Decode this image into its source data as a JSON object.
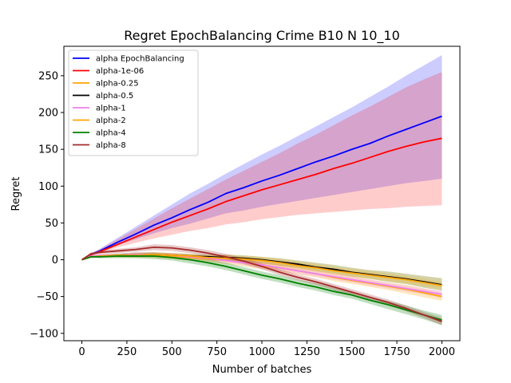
{
  "chart_data": {
    "type": "line",
    "title": "Regret EpochBalancing Crime B10 N 10_10",
    "xlabel": "Number of batches",
    "ylabel": "Regret",
    "xlim": [
      -100,
      2100
    ],
    "ylim": [
      -110,
      290
    ],
    "xticks": [
      0,
      250,
      500,
      750,
      1000,
      1250,
      1500,
      1750,
      2000
    ],
    "yticks": [
      -100,
      -50,
      0,
      50,
      100,
      150,
      200,
      250
    ],
    "legend_position": "upper-left",
    "series": [
      {
        "name": "alpha EpochBalancing",
        "color": "#0000ff",
        "band_color": "#0000ff",
        "band_opacity": 0.2,
        "x": [
          0,
          50,
          100,
          200,
          300,
          400,
          500,
          600,
          700,
          800,
          900,
          1000,
          1100,
          1200,
          1300,
          1400,
          1500,
          1600,
          1700,
          1800,
          1900,
          2000
        ],
        "y": [
          0,
          7,
          12,
          24,
          35,
          47,
          57,
          68,
          78,
          90,
          98,
          107,
          115,
          124,
          133,
          141,
          150,
          158,
          168,
          177,
          186,
          195
        ],
        "lower": [
          0,
          5,
          10,
          20,
          28,
          36,
          43,
          49,
          56,
          63,
          67,
          72,
          76,
          80,
          84,
          88,
          92,
          96,
          100,
          104,
          107,
          110
        ],
        "upper": [
          0,
          9,
          15,
          30,
          45,
          60,
          75,
          90,
          103,
          117,
          130,
          143,
          155,
          168,
          181,
          194,
          207,
          221,
          235,
          250,
          264,
          278
        ]
      },
      {
        "name": "alpha-1e-06",
        "color": "#ff0000",
        "band_color": "#ff0000",
        "band_opacity": 0.2,
        "x": [
          0,
          50,
          100,
          200,
          300,
          400,
          500,
          600,
          700,
          800,
          900,
          1000,
          1100,
          1200,
          1300,
          1400,
          1500,
          1600,
          1700,
          1800,
          1900,
          2000
        ],
        "y": [
          0,
          7,
          11,
          21,
          31,
          41,
          51,
          60,
          69,
          79,
          87,
          95,
          102,
          109,
          116,
          124,
          131,
          139,
          147,
          154,
          160,
          165
        ],
        "lower": [
          0,
          6,
          9,
          17,
          23,
          29,
          34,
          39,
          43,
          48,
          51,
          55,
          58,
          61,
          63,
          65,
          67,
          69,
          70,
          72,
          73,
          74
        ],
        "upper": [
          0,
          8,
          14,
          28,
          42,
          56,
          70,
          83,
          96,
          109,
          121,
          133,
          145,
          158,
          170,
          183,
          196,
          208,
          221,
          234,
          245,
          255
        ]
      },
      {
        "name": "alpha-0.25",
        "color": "#ffa500",
        "band_color": "#ffa500",
        "band_opacity": 0.25,
        "x": [
          0,
          50,
          100,
          200,
          300,
          400,
          500,
          600,
          700,
          800,
          900,
          1000,
          1100,
          1200,
          1300,
          1400,
          1500,
          1600,
          1700,
          1800,
          1900,
          2000
        ],
        "y": [
          0,
          4,
          5,
          5,
          6,
          6,
          5,
          3,
          1,
          -1,
          -4,
          -8,
          -11,
          -15,
          -19,
          -24,
          -28,
          -32,
          -36,
          -40,
          -45,
          -50
        ],
        "lower": [
          0,
          3,
          3,
          3,
          3,
          2,
          1,
          -1,
          -3,
          -6,
          -9,
          -13,
          -16,
          -20,
          -24,
          -29,
          -33,
          -37,
          -41,
          -46,
          -51,
          -56
        ],
        "upper": [
          0,
          5,
          7,
          7,
          9,
          10,
          9,
          7,
          5,
          4,
          1,
          -3,
          -6,
          -10,
          -14,
          -19,
          -23,
          -27,
          -31,
          -34,
          -39,
          -44
        ]
      },
      {
        "name": "alpha-0.5",
        "color": "#000000",
        "band_color": "#808000",
        "band_opacity": 0.35,
        "x": [
          0,
          50,
          100,
          200,
          300,
          400,
          500,
          600,
          700,
          800,
          900,
          1000,
          1100,
          1200,
          1300,
          1400,
          1500,
          1600,
          1700,
          1800,
          1900,
          2000
        ],
        "y": [
          0,
          4,
          5,
          6,
          7,
          7,
          6,
          5,
          4,
          3,
          2,
          0,
          -3,
          -6,
          -10,
          -13,
          -17,
          -20,
          -23,
          -26,
          -30,
          -34
        ],
        "lower": [
          0,
          3,
          3,
          4,
          4,
          4,
          3,
          2,
          0,
          -2,
          -3,
          -5,
          -8,
          -11,
          -15,
          -19,
          -23,
          -26,
          -30,
          -33,
          -38,
          -42
        ],
        "upper": [
          0,
          5,
          7,
          8,
          10,
          10,
          9,
          8,
          7,
          7,
          6,
          4,
          2,
          -1,
          -4,
          -7,
          -11,
          -14,
          -16,
          -19,
          -22,
          -25
        ]
      },
      {
        "name": "alpha-1",
        "color": "#ee82ee",
        "band_color": "#ee82ee",
        "band_opacity": 0.25,
        "x": [
          0,
          50,
          100,
          200,
          300,
          400,
          500,
          600,
          700,
          800,
          900,
          1000,
          1100,
          1200,
          1300,
          1400,
          1500,
          1600,
          1700,
          1800,
          1900,
          2000
        ],
        "y": [
          0,
          5,
          6,
          6,
          7,
          7,
          6,
          4,
          2,
          -1,
          -4,
          -7,
          -11,
          -15,
          -19,
          -23,
          -27,
          -31,
          -35,
          -39,
          -43,
          -47
        ],
        "lower": [
          0,
          4,
          4,
          4,
          4,
          4,
          3,
          1,
          -1,
          -4,
          -7,
          -11,
          -15,
          -19,
          -23,
          -27,
          -31,
          -35,
          -39,
          -43,
          -47,
          -52
        ],
        "upper": [
          0,
          6,
          8,
          8,
          10,
          10,
          9,
          7,
          5,
          2,
          -1,
          -3,
          -7,
          -11,
          -15,
          -19,
          -23,
          -27,
          -31,
          -35,
          -39,
          -42
        ]
      },
      {
        "name": "alpha-2",
        "color": "#ffa500",
        "band_color": "#ffa500",
        "band_opacity": 0.2,
        "x": [
          0,
          50,
          100,
          200,
          300,
          400,
          500,
          600,
          700,
          800,
          900,
          1000,
          1100,
          1200,
          1300,
          1400,
          1500,
          1600,
          1700,
          1800,
          1900,
          2000
        ],
        "y": [
          0,
          4,
          5,
          6,
          6,
          7,
          6,
          5,
          3,
          2,
          1,
          -1,
          -4,
          -8,
          -11,
          -15,
          -18,
          -21,
          -24,
          -27,
          -31,
          -35
        ],
        "lower": [
          0,
          3,
          3,
          4,
          3,
          4,
          3,
          2,
          0,
          -2,
          -3,
          -6,
          -9,
          -13,
          -16,
          -20,
          -23,
          -26,
          -29,
          -32,
          -36,
          -40
        ],
        "upper": [
          0,
          5,
          7,
          8,
          9,
          10,
          9,
          8,
          6,
          6,
          5,
          4,
          1,
          -3,
          -6,
          -10,
          -13,
          -16,
          -19,
          -22,
          -26,
          -30
        ]
      },
      {
        "name": "alpha-4",
        "color": "#008000",
        "band_color": "#008000",
        "band_opacity": 0.25,
        "x": [
          0,
          50,
          100,
          200,
          300,
          400,
          500,
          600,
          700,
          800,
          900,
          1000,
          1100,
          1200,
          1300,
          1400,
          1500,
          1600,
          1700,
          1800,
          1900,
          2000
        ],
        "y": [
          0,
          4,
          4,
          5,
          5,
          5,
          3,
          0,
          -4,
          -9,
          -15,
          -21,
          -26,
          -32,
          -37,
          -43,
          -48,
          -55,
          -61,
          -68,
          -75,
          -82
        ],
        "lower": [
          0,
          3,
          2,
          2,
          2,
          1,
          -1,
          -5,
          -9,
          -14,
          -20,
          -26,
          -31,
          -37,
          -42,
          -48,
          -53,
          -60,
          -67,
          -74,
          -81,
          -89
        ],
        "upper": [
          0,
          5,
          6,
          8,
          8,
          9,
          7,
          5,
          1,
          -4,
          -10,
          -16,
          -21,
          -27,
          -32,
          -38,
          -43,
          -50,
          -56,
          -62,
          -69,
          -75
        ]
      },
      {
        "name": "alpha-8",
        "color": "#a52a2a",
        "band_color": "#a52a2a",
        "band_opacity": 0.25,
        "x": [
          0,
          50,
          100,
          200,
          300,
          400,
          500,
          600,
          700,
          800,
          900,
          1000,
          1100,
          1200,
          1300,
          1400,
          1500,
          1600,
          1700,
          1800,
          1900,
          2000
        ],
        "y": [
          0,
          8,
          10,
          12,
          14,
          17,
          16,
          13,
          9,
          4,
          -2,
          -9,
          -17,
          -24,
          -30,
          -37,
          -44,
          -51,
          -58,
          -66,
          -75,
          -84
        ],
        "lower": [
          0,
          6,
          8,
          9,
          11,
          13,
          12,
          9,
          5,
          0,
          -6,
          -13,
          -21,
          -28,
          -34,
          -41,
          -48,
          -55,
          -62,
          -70,
          -79,
          -89
        ],
        "upper": [
          0,
          10,
          12,
          15,
          17,
          21,
          20,
          17,
          13,
          8,
          2,
          -5,
          -13,
          -20,
          -26,
          -33,
          -40,
          -47,
          -54,
          -62,
          -71,
          -79
        ]
      }
    ]
  }
}
